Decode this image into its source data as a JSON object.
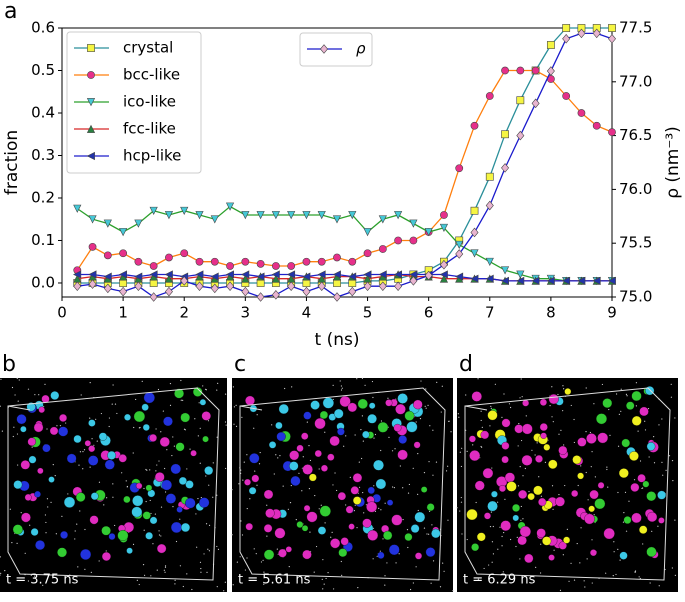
{
  "chart_data": {
    "type": "line",
    "panel_label": "a",
    "xlabel": "t (ns)",
    "ylabel": "fraction",
    "y2label": "ρ (nm⁻³)",
    "xlim": [
      0,
      9
    ],
    "xticks": [
      0,
      1,
      2,
      3,
      4,
      5,
      6,
      7,
      8,
      9
    ],
    "ylim": [
      -0.033,
      0.6
    ],
    "yticks": [
      {
        "value": 0,
        "label": "0.0"
      },
      0.1,
      0.2,
      0.3,
      0.4,
      0.5,
      0.6
    ],
    "y2lim": [
      75,
      77.5
    ],
    "y2ticks": [
      {
        "value": 75,
        "label": "75.0"
      },
      75.5,
      {
        "value": 76,
        "label": "76.0"
      },
      76.5,
      {
        "value": 77,
        "label": "77.0"
      },
      77.5
    ],
    "legend": "upper left",
    "y2legend": "upper center",
    "x": [
      0.25,
      0.5,
      0.75,
      1,
      1.25,
      1.5,
      1.75,
      2,
      2.25,
      2.5,
      2.75,
      3,
      3.25,
      3.5,
      3.75,
      4,
      4.25,
      4.5,
      4.75,
      5,
      5.25,
      5.5,
      5.75,
      6,
      6.25,
      6.5,
      6.75,
      7,
      7.25,
      7.5,
      7.75,
      8,
      8.25,
      8.5,
      8.75,
      9
    ],
    "series": [
      {
        "name": "crystal",
        "color": "#2a8f9a",
        "marker_color": "#f5f542",
        "marker": "square",
        "values": [
          0,
          0,
          0,
          0,
          0,
          0,
          0,
          0,
          0,
          0,
          0,
          0,
          0,
          0,
          0,
          0,
          0,
          0,
          0,
          0.005,
          0.005,
          0.01,
          0.02,
          0.03,
          0.05,
          0.1,
          0.17,
          0.25,
          0.35,
          0.43,
          0.5,
          0.56,
          0.6,
          0.6,
          0.6,
          0.6
        ]
      },
      {
        "name": "bcc-like",
        "color": "#ff7f0e",
        "marker_color": "#e6308a",
        "marker": "circle",
        "values": [
          0.03,
          0.085,
          0.065,
          0.07,
          0.05,
          0.04,
          0.06,
          0.07,
          0.05,
          0.05,
          0.04,
          0.05,
          0.045,
          0.04,
          0.04,
          0.05,
          0.05,
          0.06,
          0.05,
          0.07,
          0.08,
          0.1,
          0.1,
          0.12,
          0.16,
          0.27,
          0.37,
          0.44,
          0.5,
          0.5,
          0.5,
          0.48,
          0.44,
          0.4,
          0.37,
          0.355
        ]
      },
      {
        "name": "ico-like",
        "color": "#2ca02c",
        "marker_color": "#45c8d6",
        "marker": "triangle_down",
        "values": [
          0.175,
          0.15,
          0.14,
          0.12,
          0.14,
          0.17,
          0.16,
          0.17,
          0.16,
          0.15,
          0.18,
          0.16,
          0.16,
          0.16,
          0.16,
          0.16,
          0.16,
          0.15,
          0.16,
          0.12,
          0.15,
          0.16,
          0.14,
          0.12,
          0.13,
          0.09,
          0.07,
          0.05,
          0.03,
          0.02,
          0.01,
          0.01,
          0.005,
          0.005,
          0.005,
          0.005
        ]
      },
      {
        "name": "fcc-like",
        "color": "#d62728",
        "marker_color": "#2a8040",
        "marker": "triangle_up",
        "values": [
          0.01,
          0.015,
          0.01,
          0.015,
          0.01,
          0.015,
          0.01,
          0.01,
          0.015,
          0.01,
          0.015,
          0.01,
          0.015,
          0.01,
          0.01,
          0.015,
          0.01,
          0.015,
          0.015,
          0.01,
          0.015,
          0.02,
          0.015,
          0.015,
          0.01,
          0.01,
          0.01,
          0.01,
          0.005,
          0.005,
          0.005,
          0.005,
          0.005,
          0.005,
          0.005,
          0.005
        ]
      },
      {
        "name": "hcp-like",
        "color": "#1f1fcc",
        "marker_color": "#2233aa",
        "marker": "triangle_left",
        "values": [
          0.02,
          0.02,
          0.015,
          0.02,
          0.015,
          0.02,
          0.02,
          0.015,
          0.02,
          0.015,
          0.02,
          0.02,
          0.015,
          0.02,
          0.02,
          0.015,
          0.02,
          0.02,
          0.015,
          0.02,
          0.02,
          0.02,
          0.02,
          0.02,
          0.02,
          0.015,
          0.01,
          0.01,
          0.005,
          0.005,
          0.005,
          0.005,
          0.005,
          0.005,
          0.005,
          0.005
        ]
      },
      {
        "name": "ρ",
        "color": "#1a1acc",
        "marker_color": "#e8b4cf",
        "marker": "diamond",
        "axis": "y2",
        "values": [
          75.1,
          75.12,
          75.08,
          75.05,
          75.1,
          75.0,
          75.05,
          75.15,
          75.1,
          75.08,
          75.1,
          75.05,
          75.0,
          75.02,
          75.1,
          75.05,
          75.1,
          75.0,
          75.05,
          75.1,
          75.1,
          75.1,
          75.15,
          75.2,
          75.3,
          75.4,
          75.6,
          75.85,
          76.2,
          76.5,
          76.8,
          77.1,
          77.4,
          77.45,
          77.45,
          77.4
        ]
      }
    ]
  },
  "panels": [
    {
      "label": "b",
      "caption": "t = 3.75 ns"
    },
    {
      "label": "c",
      "caption": "t = 5.61 ns"
    },
    {
      "label": "d",
      "caption": "t = 6.29 ns"
    }
  ]
}
